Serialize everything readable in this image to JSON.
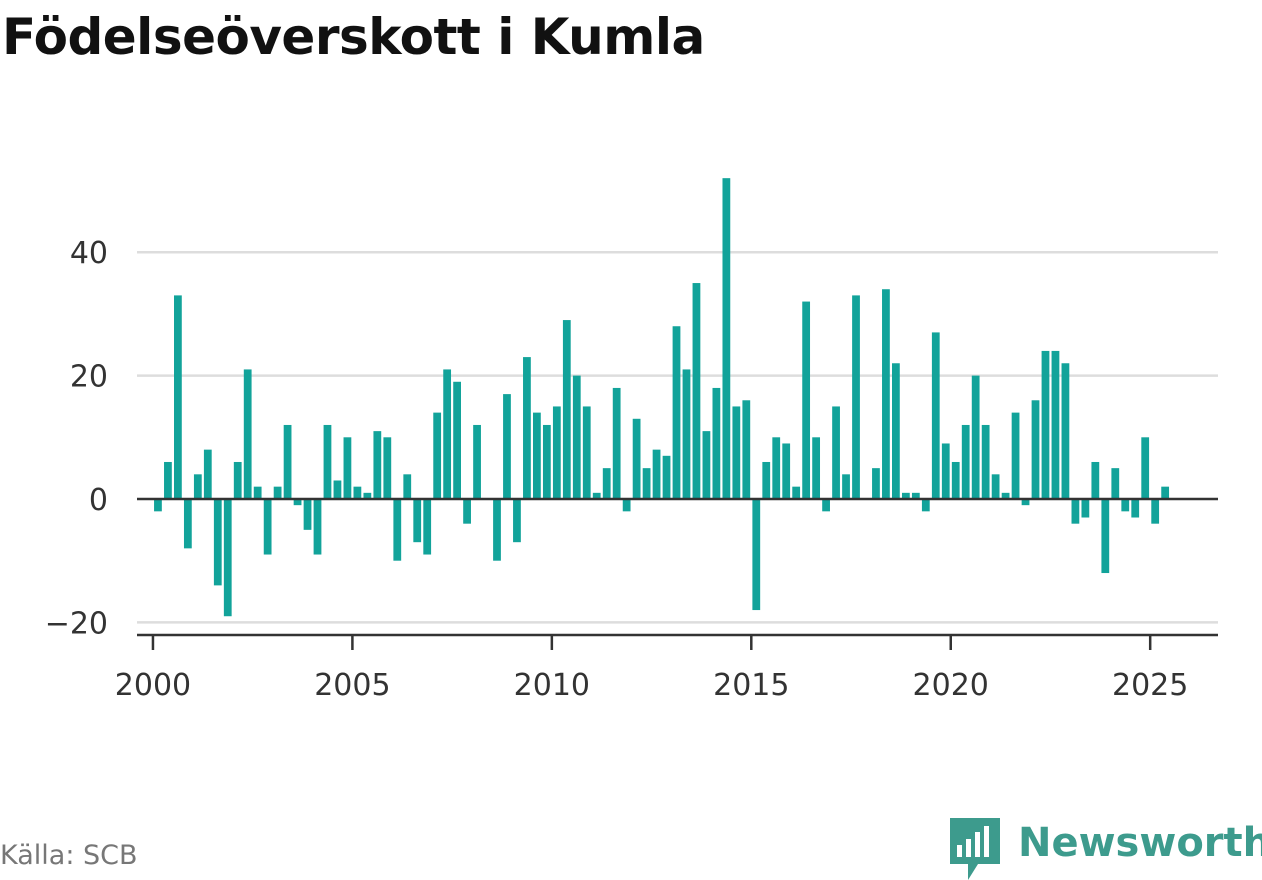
{
  "title": "Födelseöverskott i Kumla",
  "source": "Källa: SCB",
  "brand": {
    "name": "Newsworthy",
    "icon": "newsworthy-logo-icon"
  },
  "colors": {
    "bar": "#12a39a",
    "axis": "#333333",
    "grid": "#dddddd",
    "brand": "#3d9b8d"
  },
  "chart_data": {
    "type": "bar",
    "title": "Födelseöverskott i Kumla",
    "xlabel": "",
    "ylabel": "",
    "xlim": [
      1999.6,
      2026.7
    ],
    "ylim": [
      -20,
      52
    ],
    "xticks": [
      2000,
      2005,
      2010,
      2015,
      2020,
      2025
    ],
    "yticks": [
      -20,
      0,
      20,
      40
    ],
    "ytick_labels": [
      "−20",
      "0",
      "20",
      "40"
    ],
    "grid": true,
    "x": [
      "2000-Q1",
      "2000-Q2",
      "2000-Q3",
      "2000-Q4",
      "2001-Q1",
      "2001-Q2",
      "2001-Q3",
      "2001-Q4",
      "2002-Q1",
      "2002-Q2",
      "2002-Q3",
      "2002-Q4",
      "2003-Q1",
      "2003-Q2",
      "2003-Q3",
      "2003-Q4",
      "2004-Q1",
      "2004-Q2",
      "2004-Q3",
      "2004-Q4",
      "2005-Q1",
      "2005-Q2",
      "2005-Q3",
      "2005-Q4",
      "2006-Q1",
      "2006-Q2",
      "2006-Q3",
      "2006-Q4",
      "2007-Q1",
      "2007-Q2",
      "2007-Q3",
      "2007-Q4",
      "2008-Q1",
      "2008-Q2",
      "2008-Q3",
      "2008-Q4",
      "2009-Q1",
      "2009-Q2",
      "2009-Q3",
      "2009-Q4",
      "2010-Q1",
      "2010-Q2",
      "2010-Q3",
      "2010-Q4",
      "2011-Q1",
      "2011-Q2",
      "2011-Q3",
      "2011-Q4",
      "2012-Q1",
      "2012-Q2",
      "2012-Q3",
      "2012-Q4",
      "2013-Q1",
      "2013-Q2",
      "2013-Q3",
      "2013-Q4",
      "2014-Q1",
      "2014-Q2",
      "2014-Q3",
      "2014-Q4",
      "2015-Q1",
      "2015-Q2",
      "2015-Q3",
      "2015-Q4",
      "2016-Q1",
      "2016-Q2",
      "2016-Q3",
      "2016-Q4",
      "2017-Q1",
      "2017-Q2",
      "2017-Q3",
      "2017-Q4",
      "2018-Q1",
      "2018-Q2",
      "2018-Q3",
      "2018-Q4",
      "2019-Q1",
      "2019-Q2",
      "2019-Q3",
      "2019-Q4",
      "2020-Q1",
      "2020-Q2",
      "2020-Q3",
      "2020-Q4",
      "2021-Q1",
      "2021-Q2",
      "2021-Q3",
      "2021-Q4",
      "2022-Q1",
      "2022-Q2",
      "2022-Q3",
      "2022-Q4",
      "2023-Q1",
      "2023-Q2",
      "2023-Q3",
      "2023-Q4",
      "2024-Q1",
      "2024-Q2",
      "2024-Q3",
      "2024-Q4",
      "2025-Q1",
      "2025-Q2"
    ],
    "values": [
      -2,
      6,
      33,
      -8,
      4,
      8,
      -14,
      -19,
      6,
      21,
      2,
      -9,
      2,
      12,
      -1,
      -5,
      -9,
      12,
      3,
      10,
      2,
      1,
      11,
      10,
      -10,
      4,
      -7,
      -9,
      14,
      21,
      19,
      -4,
      12,
      0,
      -10,
      17,
      -7,
      23,
      14,
      12,
      15,
      29,
      20,
      15,
      1,
      5,
      18,
      -2,
      13,
      5,
      8,
      7,
      28,
      21,
      35,
      11,
      18,
      52,
      15,
      16,
      -18,
      6,
      10,
      9,
      2,
      32,
      10,
      -2,
      15,
      4,
      33,
      0,
      5,
      34,
      22,
      1,
      1,
      -2,
      27,
      9,
      6,
      12,
      20,
      12,
      4,
      1,
      14,
      -1,
      16,
      24,
      24,
      22,
      -4,
      -3,
      6,
      -12,
      5,
      -2,
      -3,
      10,
      -4,
      2
    ]
  }
}
